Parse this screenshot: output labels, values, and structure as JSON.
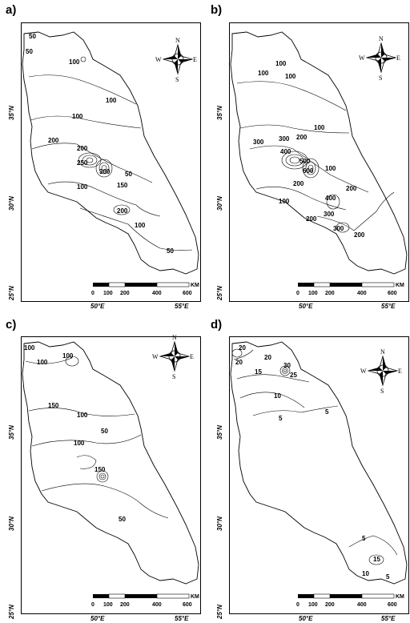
{
  "panels": [
    {
      "letter": "a)",
      "lat_labels": [
        "35°N",
        "30°N",
        "25°N"
      ],
      "lon_labels": [
        "50°E",
        "55°E"
      ],
      "scale_labels": [
        "0",
        "100",
        "200",
        "400",
        "600"
      ],
      "scale_unit": "KM",
      "compass": [
        "N",
        "S",
        "E",
        "W"
      ],
      "contour_labels": [
        "50",
        "50",
        "100",
        "100",
        "100",
        "200",
        "200",
        "250",
        "300",
        "50",
        "150",
        "100",
        "200",
        "100",
        "50"
      ]
    },
    {
      "letter": "b)",
      "lat_labels": [
        "35°N",
        "30°N",
        "25°N"
      ],
      "lon_labels": [
        "50°E",
        "55°E"
      ],
      "scale_labels": [
        "0",
        "100",
        "200",
        "400",
        "600"
      ],
      "scale_unit": "KM",
      "compass": [
        "N",
        "S",
        "E",
        "W"
      ],
      "contour_labels": [
        "100",
        "100",
        "100",
        "100",
        "300",
        "300",
        "200",
        "400",
        "500",
        "600",
        "100",
        "200",
        "200",
        "400",
        "100",
        "300",
        "200",
        "300",
        "200"
      ]
    },
    {
      "letter": "c)",
      "lat_labels": [
        "35°N",
        "30°N",
        "25°N"
      ],
      "lon_labels": [
        "50°E",
        "55°E"
      ],
      "scale_labels": [
        "0",
        "100",
        "200",
        "400",
        "600"
      ],
      "scale_unit": "KM",
      "compass": [
        "N",
        "S",
        "E",
        "W"
      ],
      "contour_labels": [
        "100",
        "100",
        "100",
        "150",
        "100",
        "50",
        "100",
        "150",
        "50"
      ]
    },
    {
      "letter": "d)",
      "lat_labels": [
        "35°N",
        "30°N",
        "25°N"
      ],
      "lon_labels": [
        "50°E",
        "55°E"
      ],
      "scale_labels": [
        "0",
        "100",
        "200",
        "400",
        "600"
      ],
      "scale_unit": "KM",
      "compass": [
        "N",
        "S",
        "E",
        "W"
      ],
      "contour_labels": [
        "20",
        "20",
        "20",
        "30",
        "25",
        "15",
        "10",
        "5",
        "5",
        "5",
        "15",
        "10",
        "5"
      ]
    }
  ]
}
